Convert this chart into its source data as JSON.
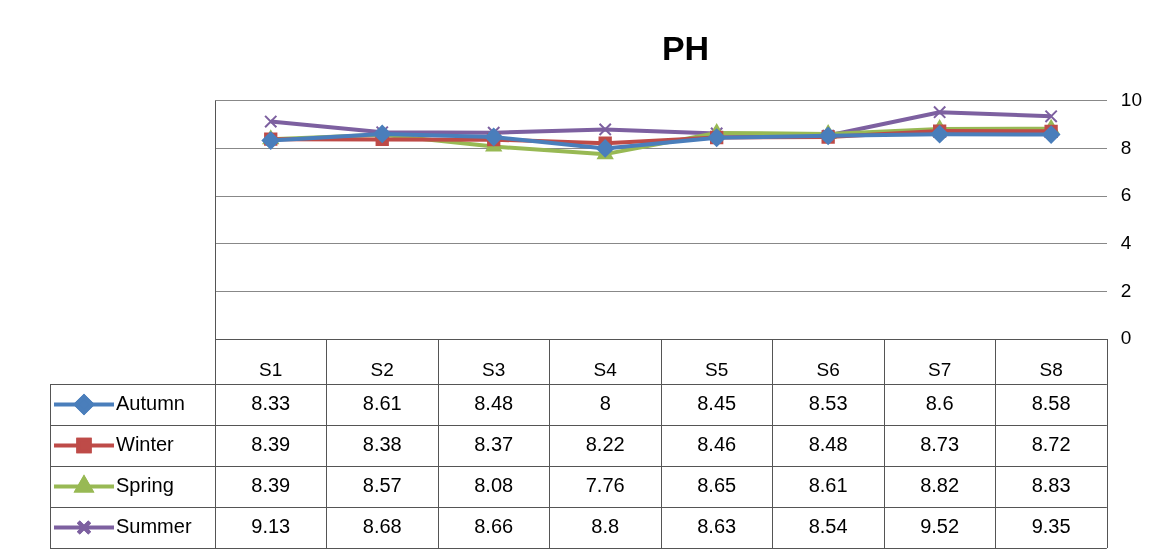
{
  "chart_data": {
    "type": "line",
    "title": "PH",
    "categories": [
      "S1",
      "S2",
      "S3",
      "S4",
      "S5",
      "S6",
      "S7",
      "S8"
    ],
    "series": [
      {
        "name": "Autumn",
        "color": "#4a7ebb",
        "marker": "diamond",
        "values": [
          8.33,
          8.61,
          8.48,
          8,
          8.45,
          8.53,
          8.6,
          8.58
        ]
      },
      {
        "name": "Winter",
        "color": "#be4b48",
        "marker": "square",
        "values": [
          8.39,
          8.38,
          8.37,
          8.22,
          8.46,
          8.48,
          8.73,
          8.72
        ]
      },
      {
        "name": "Spring",
        "color": "#98b954",
        "marker": "triangle",
        "values": [
          8.39,
          8.57,
          8.08,
          7.76,
          8.65,
          8.61,
          8.82,
          8.83
        ]
      },
      {
        "name": "Summer",
        "color": "#7d60a0",
        "marker": "cross",
        "values": [
          9.13,
          8.68,
          8.66,
          8.8,
          8.63,
          8.54,
          9.52,
          9.35
        ]
      }
    ],
    "ylim": [
      0,
      10
    ],
    "yticks": [
      0,
      2,
      4,
      6,
      8,
      10
    ],
    "grid": "y",
    "legend": "bottom left",
    "data_labels": true
  }
}
